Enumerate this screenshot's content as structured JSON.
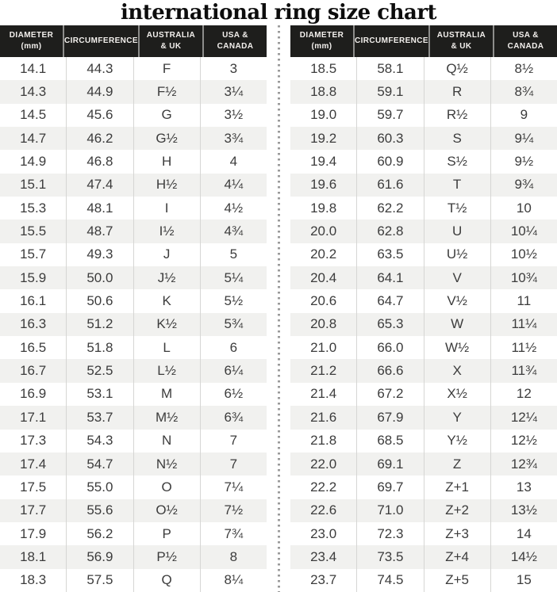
{
  "title": "international ring size chart",
  "colors": {
    "header_bg": "#1e1e1c",
    "header_text": "#f3f0ed",
    "row_alt": "#f1f1ef",
    "body_text": "#3c3c3c",
    "cell_border": "#d6d6d4",
    "divider_dot": "#9a9a9a"
  },
  "chart_data": {
    "type": "table",
    "title": "international ring size chart",
    "columns": [
      "DIAMETER (mm)",
      "CIRCUMFERENCE",
      "AUSTRALIA & UK",
      "USA & CANADA"
    ],
    "column_display": [
      "DIAMETER\n(mm)",
      "CIRCUMFERENCE",
      "AUSTRALIA\n& UK",
      "USA &\nCANADA"
    ],
    "tables": [
      {
        "side": "left",
        "rows": [
          [
            "14.1",
            "44.3",
            "F",
            "3"
          ],
          [
            "14.3",
            "44.9",
            "F½",
            "3¼"
          ],
          [
            "14.5",
            "45.6",
            "G",
            "3½"
          ],
          [
            "14.7",
            "46.2",
            "G½",
            "3¾"
          ],
          [
            "14.9",
            "46.8",
            "H",
            "4"
          ],
          [
            "15.1",
            "47.4",
            "H½",
            "4¼"
          ],
          [
            "15.3",
            "48.1",
            "I",
            "4½"
          ],
          [
            "15.5",
            "48.7",
            "I½",
            "4¾"
          ],
          [
            "15.7",
            "49.3",
            "J",
            "5"
          ],
          [
            "15.9",
            "50.0",
            "J½",
            "5¼"
          ],
          [
            "16.1",
            "50.6",
            "K",
            "5½"
          ],
          [
            "16.3",
            "51.2",
            "K½",
            "5¾"
          ],
          [
            "16.5",
            "51.8",
            "L",
            "6"
          ],
          [
            "16.7",
            "52.5",
            "L½",
            "6¼"
          ],
          [
            "16.9",
            "53.1",
            "M",
            "6½"
          ],
          [
            "17.1",
            "53.7",
            "M½",
            "6¾"
          ],
          [
            "17.3",
            "54.3",
            "N",
            "7"
          ],
          [
            "17.4",
            "54.7",
            "N½",
            "7"
          ],
          [
            "17.5",
            "55.0",
            "O",
            "7¼"
          ],
          [
            "17.7",
            "55.6",
            "O½",
            "7½"
          ],
          [
            "17.9",
            "56.2",
            "P",
            "7¾"
          ],
          [
            "18.1",
            "56.9",
            "P½",
            "8"
          ],
          [
            "18.3",
            "57.5",
            "Q",
            "8¼"
          ]
        ]
      },
      {
        "side": "right",
        "rows": [
          [
            "18.5",
            "58.1",
            "Q½",
            "8½"
          ],
          [
            "18.8",
            "59.1",
            "R",
            "8¾"
          ],
          [
            "19.0",
            "59.7",
            "R½",
            "9"
          ],
          [
            "19.2",
            "60.3",
            "S",
            "9¼"
          ],
          [
            "19.4",
            "60.9",
            "S½",
            "9½"
          ],
          [
            "19.6",
            "61.6",
            "T",
            "9¾"
          ],
          [
            "19.8",
            "62.2",
            "T½",
            "10"
          ],
          [
            "20.0",
            "62.8",
            "U",
            "10¼"
          ],
          [
            "20.2",
            "63.5",
            "U½",
            "10½"
          ],
          [
            "20.4",
            "64.1",
            "V",
            "10¾"
          ],
          [
            "20.6",
            "64.7",
            "V½",
            "11"
          ],
          [
            "20.8",
            "65.3",
            "W",
            "11¼"
          ],
          [
            "21.0",
            "66.0",
            "W½",
            "11½"
          ],
          [
            "21.2",
            "66.6",
            "X",
            "11¾"
          ],
          [
            "21.4",
            "67.2",
            "X½",
            "12"
          ],
          [
            "21.6",
            "67.9",
            "Y",
            "12¼"
          ],
          [
            "21.8",
            "68.5",
            "Y½",
            "12½"
          ],
          [
            "22.0",
            "69.1",
            "Z",
            "12¾"
          ],
          [
            "22.2",
            "69.7",
            "Z+1",
            "13"
          ],
          [
            "22.6",
            "71.0",
            "Z+2",
            "13½"
          ],
          [
            "23.0",
            "72.3",
            "Z+3",
            "14"
          ],
          [
            "23.4",
            "73.5",
            "Z+4",
            "14½"
          ],
          [
            "23.7",
            "74.5",
            "Z+5",
            "15"
          ]
        ]
      }
    ]
  }
}
